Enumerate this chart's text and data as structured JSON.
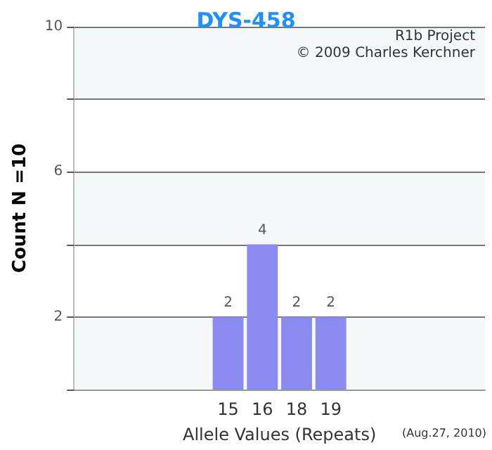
{
  "chart_data": {
    "type": "bar",
    "title": "DYS-458",
    "xlabel": "Allele Values (Repeats)",
    "ylabel": "Count N =10",
    "categories": [
      null,
      null,
      null,
      null,
      "15",
      "16",
      "18",
      "19",
      null,
      null,
      null,
      null
    ],
    "values": [
      null,
      null,
      null,
      null,
      2,
      4,
      2,
      2,
      null,
      null,
      null,
      null
    ],
    "color": "#8a8af0",
    "ylim": [
      0,
      10
    ],
    "yticks": [
      {
        "value": 0,
        "label": null
      },
      2,
      {
        "value": 4,
        "label": null
      },
      6,
      {
        "value": 8,
        "label": null
      },
      10
    ],
    "grid": "y",
    "data_labels": true,
    "annotations": [
      "R1b Project",
      "© 2009 Charles Kerchner",
      "(Aug.27, 2010)"
    ]
  }
}
